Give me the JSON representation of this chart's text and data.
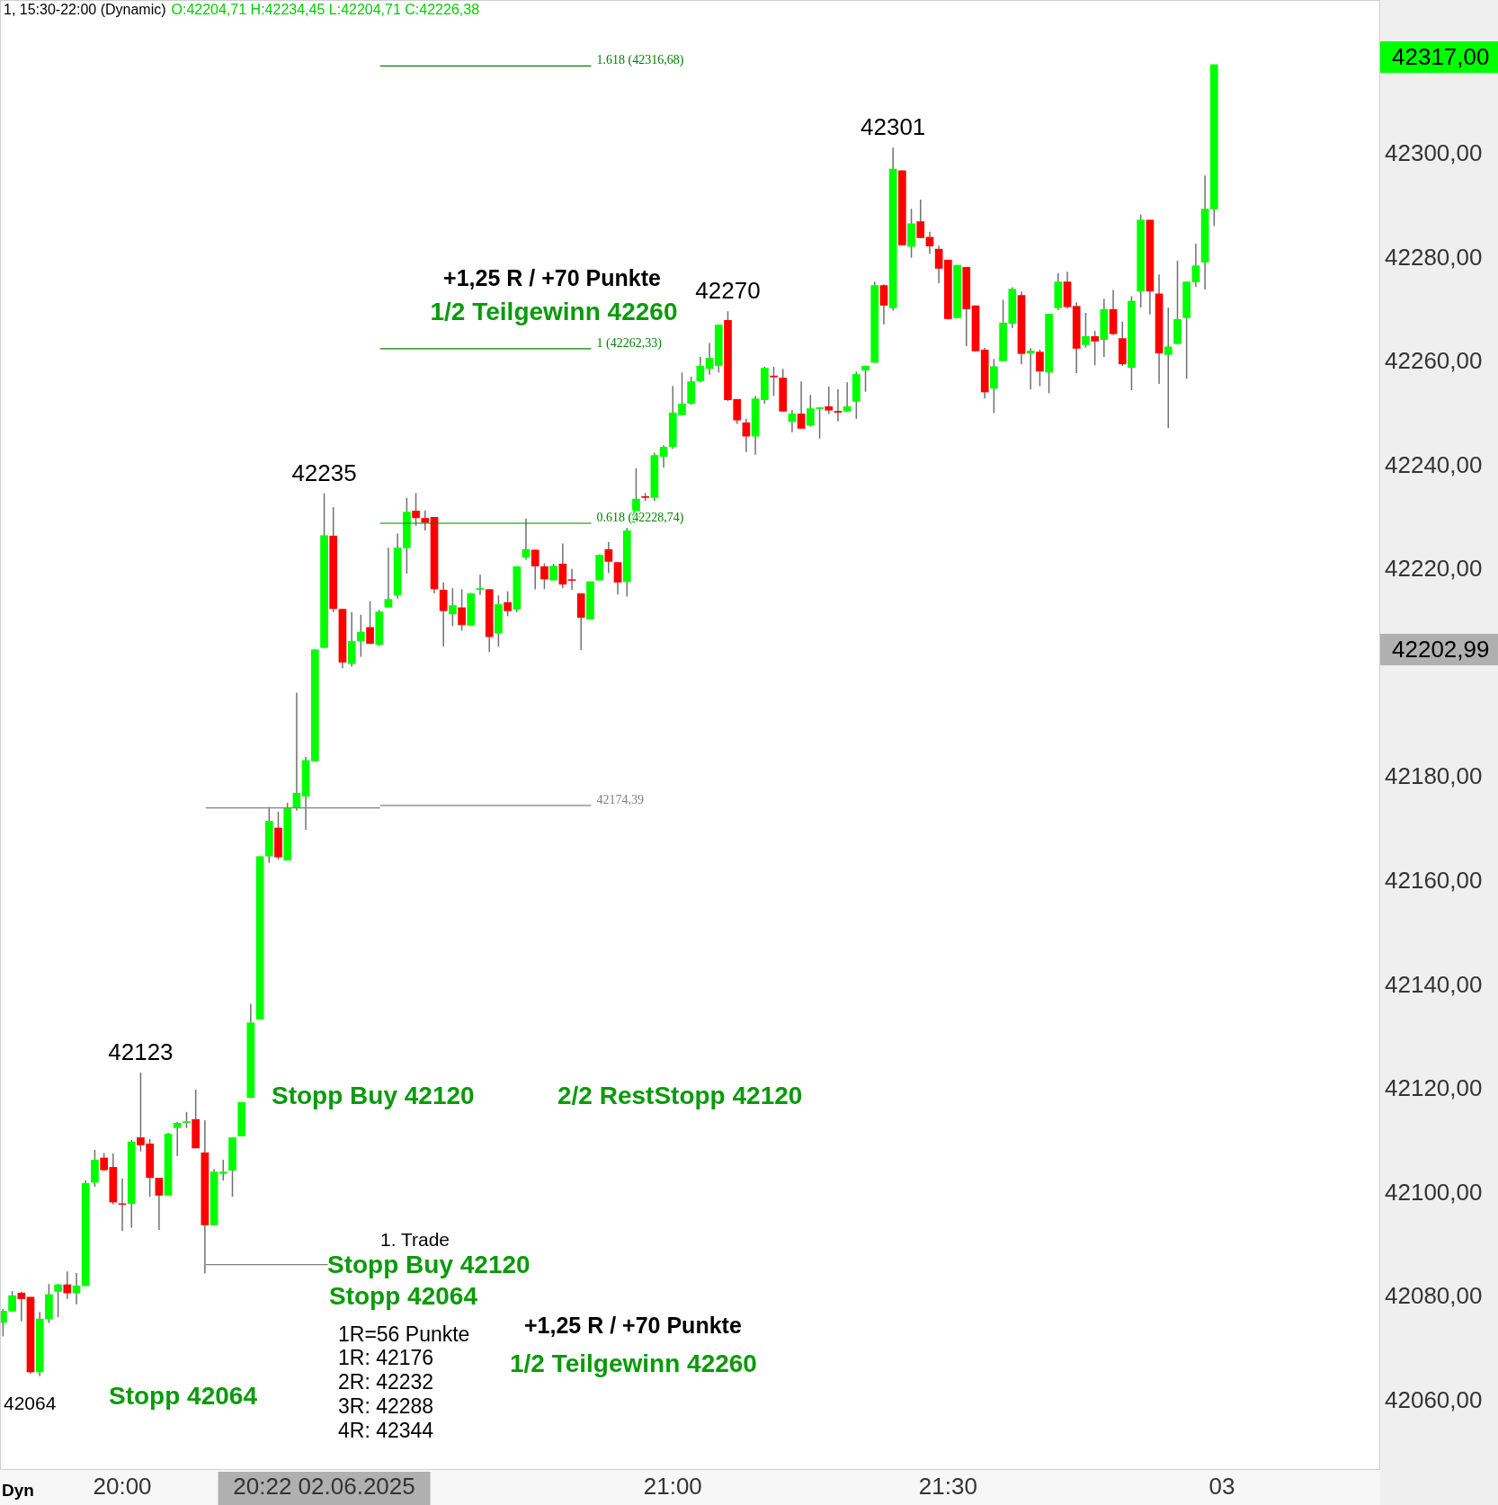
{
  "chart_data": {
    "type": "candlestick",
    "title": "1, 15:30-22:00 (Dynamic)",
    "subtitle": "O:42204,71 H:42234,45 L:42204,71 C:42226,38",
    "x": [
      19.7833,
      19.8,
      19.8167,
      19.8333,
      19.85,
      19.8667,
      19.8833,
      19.9,
      19.9167,
      19.9333,
      19.95,
      19.9667,
      19.9833,
      20,
      20.0167,
      20.0333,
      20.05,
      20.0667,
      20.0833,
      20.1,
      20.1167,
      20.1333,
      20.15,
      20.1667,
      20.1833,
      20.2,
      20.2167,
      20.2333,
      20.25,
      20.2667,
      20.2833,
      20.3,
      20.3167,
      20.3333,
      20.35,
      20.3667,
      20.3833,
      20.4,
      20.4167,
      20.4333,
      20.45,
      20.4667,
      20.4833,
      20.5,
      20.5167,
      20.5333,
      20.55,
      20.5667,
      20.5833,
      20.6,
      20.6167,
      20.6333,
      20.65,
      20.6667,
      20.6833,
      20.7,
      20.7167,
      20.7333,
      20.75,
      20.7667,
      20.7833,
      20.8,
      20.8167,
      20.8333,
      20.85,
      20.8667,
      20.8833,
      20.9,
      20.9167,
      20.9333,
      20.95,
      20.9667,
      20.9833,
      21,
      21.0167,
      21.0333,
      21.05,
      21.0667,
      21.0833,
      21.1,
      21.1167,
      21.1333,
      21.15,
      21.1667,
      21.1833,
      21.2,
      21.2167,
      21.2333,
      21.25,
      21.2667,
      21.2833,
      21.3,
      21.3167,
      21.3333,
      21.35,
      21.3667,
      21.3833,
      21.4,
      21.4167,
      21.4333,
      21.45,
      21.4667,
      21.4833,
      21.5,
      21.5167,
      21.5333,
      21.55,
      21.5667,
      21.5833,
      21.6,
      21.6167,
      21.6333,
      21.65,
      21.6667,
      21.6833,
      21.7,
      21.7167,
      21.7333,
      21.75,
      21.7667,
      21.7833,
      21.8,
      21.8167,
      21.8333,
      21.85,
      21.8667,
      21.8833,
      21.9,
      21.9167,
      21.9333,
      21.95,
      21.9667,
      21.9833
    ],
    "ohlc": [
      [
        42074.8,
        42077.5,
        42072.2,
        42077.1
      ],
      [
        42077.0,
        42080.9,
        42077.0,
        42080.1
      ],
      [
        42080.6,
        42080.8,
        42075.1,
        42079.4
      ],
      [
        42079.8,
        42079.8,
        42065.0,
        42065.3
      ],
      [
        42065.3,
        42076.9,
        42064.6,
        42075.6
      ],
      [
        42075.5,
        42082.3,
        42074.8,
        42080.3
      ],
      [
        42080.8,
        42082.3,
        42075.9,
        42082.2
      ],
      [
        42082.2,
        42084.7,
        42079.4,
        42080.5
      ],
      [
        42080.5,
        42084.4,
        42078.4,
        42082.0
      ],
      [
        42081.9,
        42102.2,
        42081.9,
        42101.7
      ],
      [
        42101.8,
        42108.1,
        42101.0,
        42106.2
      ],
      [
        42106.6,
        42107.5,
        42104.0,
        42104.2
      ],
      [
        42104.8,
        42107.4,
        42097.6,
        42098.0
      ],
      [
        42097.8,
        42102.6,
        42092.5,
        42097.6
      ],
      [
        42097.7,
        42110.0,
        42093.1,
        42109.7
      ],
      [
        42110.5,
        42123.0,
        42107.8,
        42109.0
      ],
      [
        42109.3,
        42110.2,
        42099.1,
        42102.7
      ],
      [
        42102.7,
        42102.7,
        42092.7,
        42099.3
      ],
      [
        42099.3,
        42111.4,
        42099.3,
        42111.2
      ],
      [
        42112.3,
        42113.5,
        42106.9,
        42113.3
      ],
      [
        42113.3,
        42115.4,
        42112.3,
        42113.6
      ],
      [
        42114.0,
        42119.7,
        42108.4,
        42108.4
      ],
      [
        42107.6,
        42113.8,
        42084.3,
        42093.6
      ],
      [
        42093.6,
        42104.4,
        42093.6,
        42103.9
      ],
      [
        42103.5,
        42106.2,
        42102.2,
        42103.9
      ],
      [
        42104.1,
        42110.5,
        42099.1,
        42110.5
      ],
      [
        42110.7,
        42117.3,
        42110.7,
        42117.3
      ],
      [
        42118.1,
        42136.2,
        42118.1,
        42132.6
      ],
      [
        42133.2,
        42164.6,
        42133.2,
        42164.6
      ],
      [
        42164.6,
        42174.1,
        42163.3,
        42171.4
      ],
      [
        42170.1,
        42173.2,
        42164.0,
        42164.4
      ],
      [
        42163.8,
        42174.9,
        42163.8,
        42173.9
      ],
      [
        42173.9,
        42196.1,
        42173.4,
        42176.8
      ],
      [
        42176.1,
        42183.7,
        42169.7,
        42183.1
      ],
      [
        42182.9,
        42204.4,
        42182.9,
        42204.4
      ],
      [
        42204.71,
        42234.45,
        42204.71,
        42226.38
      ],
      [
        42226.3,
        42231.8,
        42211.6,
        42212.2
      ],
      [
        42212.2,
        42212.2,
        42200.8,
        42201.9
      ],
      [
        42201.6,
        42211.6,
        42201.1,
        42206.0
      ],
      [
        42206.0,
        42211.1,
        42203.0,
        42207.8
      ],
      [
        42208.7,
        42213.7,
        42205.5,
        42205.5
      ],
      [
        42205.3,
        42212.0,
        42205.1,
        42211.7
      ],
      [
        42212.5,
        42224.0,
        42212.5,
        42214.1
      ],
      [
        42214.8,
        42226.7,
        42214.2,
        42224.0
      ],
      [
        42223.9,
        42233.6,
        42219.0,
        42230.9
      ],
      [
        42231.1,
        42234.5,
        42228.2,
        42229.7
      ],
      [
        42229.7,
        42231.1,
        42227.3,
        42228.8
      ],
      [
        42229.9,
        42229.9,
        42215.2,
        42216.0
      ],
      [
        42215.9,
        42217.3,
        42205.0,
        42211.8
      ],
      [
        42211.2,
        42216.2,
        42208.9,
        42212.9
      ],
      [
        42212.5,
        42216.0,
        42208.0,
        42209.1
      ],
      [
        42209.0,
        42215.3,
        42209.0,
        42215.2
      ],
      [
        42215.9,
        42218.8,
        42214.9,
        42216.2
      ],
      [
        42216.0,
        42216.0,
        42203.9,
        42206.8
      ],
      [
        42207.5,
        42214.8,
        42205.0,
        42213.1
      ],
      [
        42213.5,
        42215.6,
        42210.8,
        42211.8
      ],
      [
        42212.1,
        42220.4,
        42211.6,
        42220.4
      ],
      [
        42222.1,
        42229.6,
        42221.7,
        42223.7
      ],
      [
        42223.6,
        42223.6,
        42216.0,
        42220.4
      ],
      [
        42220.4,
        42221.0,
        42216.0,
        42217.9
      ],
      [
        42217.7,
        42220.9,
        42217.7,
        42220.5
      ],
      [
        42220.9,
        42224.8,
        42216.2,
        42216.9
      ],
      [
        42217.9,
        42219.9,
        42215.9,
        42217.7
      ],
      [
        42215.2,
        42215.2,
        42204.3,
        42210.5
      ],
      [
        42210.2,
        42217.5,
        42210.2,
        42217.5
      ],
      [
        42217.7,
        42222.7,
        42217.7,
        42222.6
      ],
      [
        42223.7,
        42225.1,
        42219.1,
        42221.3
      ],
      [
        42221.2,
        42221.2,
        42215.0,
        42217.3
      ],
      [
        42217.4,
        42227.8,
        42214.6,
        42227.3
      ],
      [
        42228.8,
        42239.3,
        42228.8,
        42233.4
      ],
      [
        42233.9,
        42234.5,
        42233.0,
        42233.6
      ],
      [
        42233.6,
        42242.3,
        42233.0,
        42241.8
      ],
      [
        42241.5,
        42243.7,
        42239.4,
        42243.4
      ],
      [
        42243.4,
        42255.1,
        42243.0,
        42250.0
      ],
      [
        42249.5,
        42257.7,
        42249.5,
        42251.7
      ],
      [
        42251.7,
        42256.9,
        42251.5,
        42256.0
      ],
      [
        42256.0,
        42260.7,
        42255.8,
        42259.0
      ],
      [
        42258.4,
        42263.4,
        42257.3,
        42260.5
      ],
      [
        42259.0,
        42266.9,
        42257.7,
        42266.9
      ],
      [
        42267.8,
        42269.5,
        42252.2,
        42252.4
      ],
      [
        42252.6,
        42252.6,
        42247.8,
        42248.5
      ],
      [
        42248.1,
        42248.8,
        42242.4,
        42245.4
      ],
      [
        42245.4,
        42253.2,
        42241.9,
        42252.7
      ],
      [
        42252.4,
        42258.8,
        42251.7,
        42258.6
      ],
      [
        42257.1,
        42258.8,
        42253.2,
        42256.8
      ],
      [
        42256.7,
        42258.4,
        42250.2,
        42250.2
      ],
      [
        42248.2,
        42250.5,
        42246.2,
        42249.8
      ],
      [
        42249.8,
        42256.0,
        42246.9,
        42246.9
      ],
      [
        42247.5,
        42253.4,
        42247.3,
        42250.8
      ],
      [
        42250.7,
        42251.0,
        42245.0,
        42251.0
      ],
      [
        42251.2,
        42255.0,
        42249.7,
        42250.4
      ],
      [
        42250.3,
        42254.5,
        42248.3,
        42250.0
      ],
      [
        42250.2,
        42255.8,
        42250.2,
        42251.2
      ],
      [
        42252.1,
        42257.9,
        42248.8,
        42257.4
      ],
      [
        42258.1,
        42259.0,
        42254.0,
        42259.0
      ],
      [
        42259.6,
        42275.2,
        42259.6,
        42274.5
      ],
      [
        42274.5,
        42274.7,
        42267.0,
        42270.6
      ],
      [
        42270.1,
        42301.0,
        42269.6,
        42296.9
      ],
      [
        42296.6,
        42296.6,
        42282.2,
        42282.2
      ],
      [
        42281.9,
        42289.2,
        42279.8,
        42286.4
      ],
      [
        42286.8,
        42291.0,
        42283.6,
        42283.6
      ],
      [
        42283.8,
        42284.8,
        42280.5,
        42282.0
      ],
      [
        42281.5,
        42282.1,
        42274.9,
        42277.7
      ],
      [
        42279.4,
        42279.4,
        42267.9,
        42268.0
      ],
      [
        42268.2,
        42278.4,
        42268.2,
        42278.4
      ],
      [
        42278.0,
        42278.0,
        42262.8,
        42269.9
      ],
      [
        42270.6,
        42270.6,
        42261.8,
        42261.8
      ],
      [
        42262.1,
        42262.5,
        42252.7,
        42253.9
      ],
      [
        42254.6,
        42260.3,
        42249.9,
        42258.9
      ],
      [
        42259.9,
        42271.7,
        42259.9,
        42267.3
      ],
      [
        42267.1,
        42274.1,
        42266.3,
        42273.8
      ],
      [
        42272.6,
        42273.3,
        42259.3,
        42261.3
      ],
      [
        42261.4,
        42262.4,
        42254.5,
        42261.9
      ],
      [
        42261.7,
        42262.1,
        42255.1,
        42257.9
      ],
      [
        42257.7,
        42269.0,
        42253.7,
        42269.0
      ],
      [
        42270.1,
        42276.8,
        42269.7,
        42275.2
      ],
      [
        42275.2,
        42277.1,
        42270.0,
        42270.3
      ],
      [
        42270.5,
        42271.2,
        42257.6,
        42262.3
      ],
      [
        42263.0,
        42269.2,
        42262.5,
        42264.7
      ],
      [
        42264.7,
        42265.7,
        42259.1,
        42263.7
      ],
      [
        42264.0,
        42271.9,
        42260.7,
        42269.9
      ],
      [
        42269.9,
        42273.6,
        42264.9,
        42265.1
      ],
      [
        42264.3,
        42267.5,
        42259.0,
        42259.3
      ],
      [
        42258.6,
        42272.4,
        42254.3,
        42271.5
      ],
      [
        42273.3,
        42288.1,
        42270.2,
        42287.1
      ],
      [
        42287.1,
        42287.1,
        42268.9,
        42273.3
      ],
      [
        42272.9,
        42276.6,
        42255.5,
        42261.4
      ],
      [
        42261.1,
        42270.2,
        42247.0,
        42262.7
      ],
      [
        42263.2,
        42279.2,
        42263.2,
        42268.0
      ],
      [
        42268.2,
        42275.2,
        42256.5,
        42275.2
      ],
      [
        42275.1,
        42282.5,
        42274.2,
        42278.3
      ],
      [
        42278.9,
        42295.6,
        42273.7,
        42289.2
      ],
      [
        42289.1,
        42317.0,
        42285.9,
        42317.0
      ]
    ],
    "series": [
      {
        "type": "line",
        "name": "1.618 (42316,68)",
        "color": "#008000",
        "x": [
          20.4683,
          20.8517
        ],
        "values": [
          42316.7,
          42316.7
        ]
      },
      {
        "type": "line",
        "name": "1 (42262,33)",
        "color": "#008000",
        "x": [
          20.4683,
          20.8517
        ],
        "values": [
          42262.3,
          42262.3
        ]
      },
      {
        "type": "line",
        "name": "0.618 (42228,74)",
        "color": "#008000",
        "x": [
          20.4683,
          20.8517
        ],
        "values": [
          42228.7,
          42228.7
        ]
      },
      {
        "type": "line",
        "name": "42174,39",
        "color": "#808080",
        "x": [
          20.4683,
          20.8517
        ],
        "values": [
          42174.4,
          42174.4
        ]
      },
      {
        "type": "line",
        "color": "#808080",
        "x": [
          20.1517,
          20.4683
        ],
        "values": [
          42173.9,
          42173.9
        ]
      },
      {
        "type": "line",
        "color": "#808080",
        "x": [
          20.1517,
          20.3733
        ],
        "values": [
          42086,
          42086
        ]
      }
    ],
    "xlim": [
      19.7778,
      22.285
    ],
    "ylim": [
      42046.5,
      42329.4
    ],
    "xticks": [
      {
        "value": 20,
        "label": "20:00"
      },
      {
        "value": 20.3667,
        "label": "20:22 02.06.2025"
      },
      {
        "value": 21,
        "label": "21:00"
      },
      {
        "value": 21.5,
        "label": "21:30"
      }
    ],
    "yticks": [
      {
        "value": 42060,
        "label": "42060,00"
      },
      {
        "value": 42080,
        "label": "42080,00"
      },
      {
        "value": 42100,
        "label": "42100,00"
      },
      {
        "value": 42120,
        "label": "42120,00"
      },
      {
        "value": 42140,
        "label": "42140,00"
      },
      {
        "value": 42160,
        "label": "42160,00"
      },
      {
        "value": 42180,
        "label": "42180,00"
      },
      {
        "value": 42220,
        "label": "42220,00"
      },
      {
        "value": 42240,
        "label": "42240,00"
      },
      {
        "value": 42260,
        "label": "42260,00"
      },
      {
        "value": 42280,
        "label": "42280,00"
      },
      {
        "value": 42300,
        "label": "42300,00"
      }
    ],
    "annotations": [
      "+1,25 R / +70 Punkte",
      "1/2 Teilgewinn 42260",
      "Stopp Buy 42120",
      "2/2 RestStopp 42120",
      "1. Trade",
      "Stopp Buy 42120",
      "Stopp 42064",
      "1R=56 Punkte",
      "1R: 42176",
      "2R: 42232",
      "3R: 42288",
      "4R: 42344",
      "+1,25 R / +70 Punkte",
      "1/2 Teilgewinn 42260",
      "Stopp 42064",
      "Dyn",
      "42064",
      "42317,00",
      "42202,99",
      "03",
      {
        "text": "42123",
        "x": 20.0333,
        "y": 42123
      },
      {
        "text": "42235",
        "x": 20.3667,
        "y": 42234.45
      },
      {
        "text": "42270",
        "x": 21.1,
        "y": 42269.5
      },
      {
        "text": "42301",
        "x": 21.4,
        "y": 42301
      }
    ]
  }
}
